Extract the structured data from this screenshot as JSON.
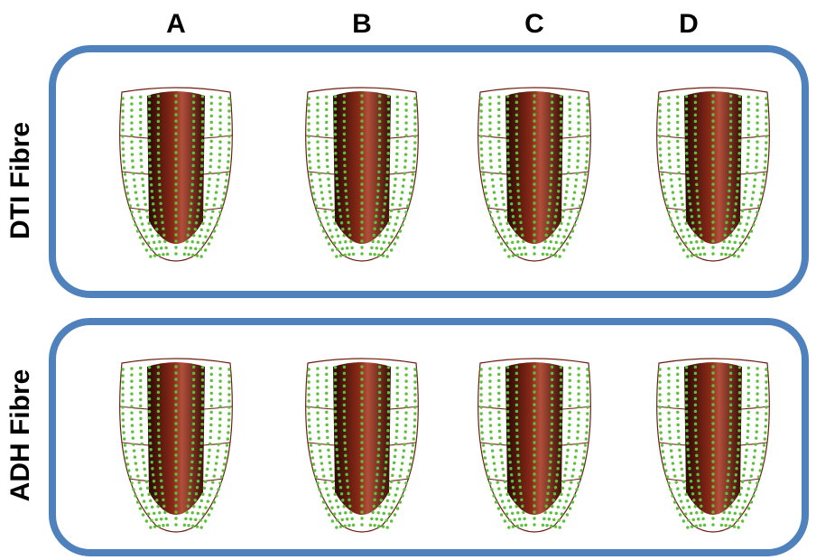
{
  "columns": [
    "A",
    "B",
    "C",
    "D"
  ],
  "rows": [
    "DTI Fibre",
    "ADH Fibre"
  ]
}
